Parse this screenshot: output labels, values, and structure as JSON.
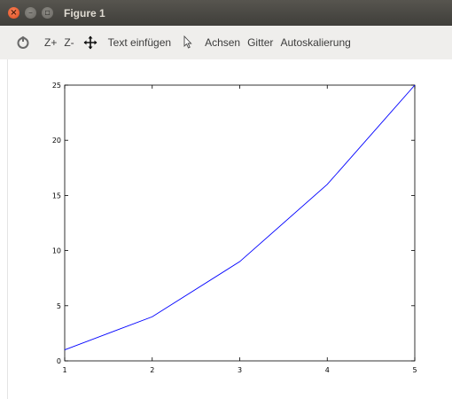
{
  "window": {
    "title": "Figure 1",
    "controls": [
      "close-icon",
      "minimize-icon",
      "maximize-icon"
    ]
  },
  "toolbar": {
    "home_icon": "home-icon",
    "zoom_in_label": "Z+",
    "zoom_out_label": "Z-",
    "pan_icon": "pan-arrows-icon",
    "text_insert_label": "Text einfügen",
    "select_icon": "pointer-icon",
    "axes_label": "Achsen",
    "grid_label": "Gitter",
    "autoscale_label": "Autoskalierung"
  },
  "chart_data": {
    "type": "line",
    "title": "",
    "xlabel": "",
    "ylabel": "",
    "xlim": [
      1,
      5
    ],
    "ylim": [
      0,
      25
    ],
    "xticks": [
      "1",
      "2",
      "3",
      "4",
      "5"
    ],
    "yticks": [
      "0",
      "5",
      "10",
      "15",
      "20",
      "25"
    ],
    "grid": false,
    "series": [
      {
        "x": [
          1,
          2,
          3,
          4,
          5
        ],
        "y": [
          1,
          4,
          9,
          16,
          25
        ],
        "color": "#0000ff"
      }
    ]
  }
}
